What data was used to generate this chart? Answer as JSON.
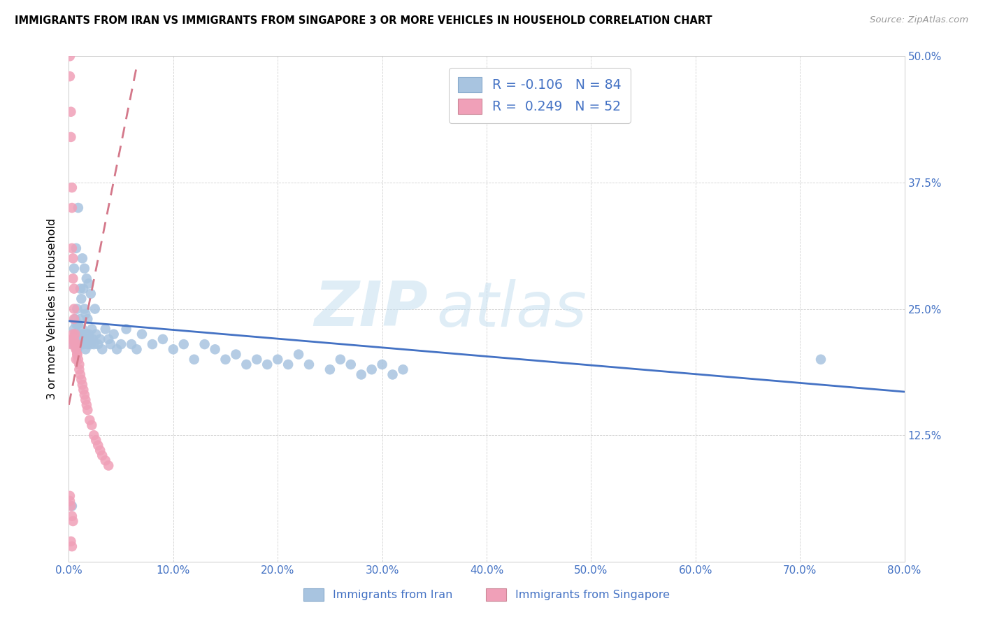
{
  "title": "IMMIGRANTS FROM IRAN VS IMMIGRANTS FROM SINGAPORE 3 OR MORE VEHICLES IN HOUSEHOLD CORRELATION CHART",
  "source": "Source: ZipAtlas.com",
  "ylabel": "3 or more Vehicles in Household",
  "legend_iran": "Immigrants from Iran",
  "legend_singapore": "Immigrants from Singapore",
  "iran_R": -0.106,
  "iran_N": 84,
  "singapore_R": 0.249,
  "singapore_N": 52,
  "xlim": [
    0.0,
    0.8
  ],
  "ylim": [
    0.0,
    0.5
  ],
  "xticks": [
    0.0,
    0.1,
    0.2,
    0.3,
    0.4,
    0.5,
    0.6,
    0.7,
    0.8
  ],
  "yticks": [
    0.0,
    0.125,
    0.25,
    0.375,
    0.5
  ],
  "right_ytick_labels": [
    "",
    "12.5%",
    "25.0%",
    "37.5%",
    "50.0%"
  ],
  "blue_color": "#a8c4e0",
  "pink_color": "#f0a0b8",
  "blue_line_color": "#4472c4",
  "pink_line_color": "#d4788a",
  "watermark_zip": "ZIP",
  "watermark_atlas": "atlas",
  "iran_x": [
    0.004,
    0.005,
    0.005,
    0.006,
    0.006,
    0.007,
    0.007,
    0.008,
    0.008,
    0.009,
    0.009,
    0.01,
    0.01,
    0.011,
    0.011,
    0.012,
    0.012,
    0.013,
    0.013,
    0.014,
    0.014,
    0.015,
    0.015,
    0.016,
    0.016,
    0.017,
    0.018,
    0.018,
    0.019,
    0.02,
    0.021,
    0.022,
    0.023,
    0.024,
    0.025,
    0.026,
    0.028,
    0.03,
    0.032,
    0.035,
    0.038,
    0.04,
    0.043,
    0.046,
    0.05,
    0.055,
    0.06,
    0.065,
    0.07,
    0.08,
    0.09,
    0.1,
    0.11,
    0.12,
    0.13,
    0.14,
    0.15,
    0.16,
    0.17,
    0.18,
    0.19,
    0.2,
    0.21,
    0.22,
    0.23,
    0.25,
    0.26,
    0.27,
    0.28,
    0.29,
    0.3,
    0.31,
    0.32,
    0.005,
    0.007,
    0.009,
    0.011,
    0.013,
    0.015,
    0.017,
    0.019,
    0.021,
    0.72,
    0.003
  ],
  "iran_y": [
    0.215,
    0.22,
    0.23,
    0.225,
    0.24,
    0.215,
    0.235,
    0.21,
    0.25,
    0.22,
    0.235,
    0.215,
    0.225,
    0.22,
    0.24,
    0.215,
    0.26,
    0.225,
    0.23,
    0.215,
    0.27,
    0.22,
    0.25,
    0.21,
    0.245,
    0.225,
    0.215,
    0.24,
    0.225,
    0.22,
    0.215,
    0.23,
    0.22,
    0.215,
    0.25,
    0.225,
    0.215,
    0.22,
    0.21,
    0.23,
    0.22,
    0.215,
    0.225,
    0.21,
    0.215,
    0.23,
    0.215,
    0.21,
    0.225,
    0.215,
    0.22,
    0.21,
    0.215,
    0.2,
    0.215,
    0.21,
    0.2,
    0.205,
    0.195,
    0.2,
    0.195,
    0.2,
    0.195,
    0.205,
    0.195,
    0.19,
    0.2,
    0.195,
    0.185,
    0.19,
    0.195,
    0.185,
    0.19,
    0.29,
    0.31,
    0.35,
    0.27,
    0.3,
    0.29,
    0.28,
    0.275,
    0.265,
    0.2,
    0.055
  ],
  "singapore_x": [
    0.001,
    0.001,
    0.002,
    0.002,
    0.003,
    0.003,
    0.003,
    0.004,
    0.004,
    0.005,
    0.005,
    0.005,
    0.006,
    0.006,
    0.007,
    0.007,
    0.008,
    0.008,
    0.009,
    0.01,
    0.01,
    0.011,
    0.012,
    0.013,
    0.014,
    0.015,
    0.016,
    0.017,
    0.018,
    0.02,
    0.022,
    0.024,
    0.026,
    0.028,
    0.03,
    0.032,
    0.035,
    0.038,
    0.002,
    0.003,
    0.004,
    0.005,
    0.006,
    0.007,
    0.008,
    0.001,
    0.001,
    0.002,
    0.003,
    0.004,
    0.002,
    0.003
  ],
  "singapore_y": [
    0.5,
    0.48,
    0.445,
    0.42,
    0.37,
    0.35,
    0.31,
    0.3,
    0.28,
    0.27,
    0.25,
    0.24,
    0.225,
    0.215,
    0.21,
    0.2,
    0.215,
    0.205,
    0.2,
    0.195,
    0.19,
    0.185,
    0.18,
    0.175,
    0.17,
    0.165,
    0.16,
    0.155,
    0.15,
    0.14,
    0.135,
    0.125,
    0.12,
    0.115,
    0.11,
    0.105,
    0.1,
    0.095,
    0.215,
    0.22,
    0.225,
    0.22,
    0.215,
    0.21,
    0.205,
    0.065,
    0.06,
    0.055,
    0.045,
    0.04,
    0.02,
    0.015
  ],
  "iran_line_x": [
    0.0,
    0.8
  ],
  "iran_line_y": [
    0.238,
    0.168
  ],
  "sing_line_x": [
    0.0,
    0.065
  ],
  "sing_line_y": [
    0.155,
    0.49
  ]
}
